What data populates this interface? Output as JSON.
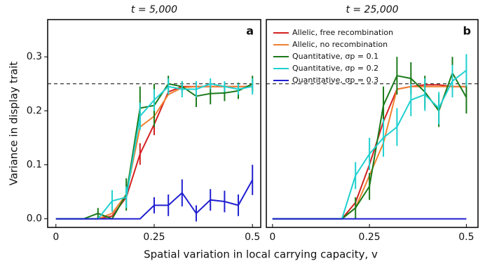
{
  "chart_data": [
    {
      "type": "line",
      "title": "t = 5,000",
      "panel_label": "a",
      "xlabel": "Spatial variation in local carrying capacity, v",
      "ylabel": "Variance in display trait",
      "x": [
        0,
        0.036,
        0.071,
        0.107,
        0.143,
        0.179,
        0.214,
        0.25,
        0.286,
        0.321,
        0.357,
        0.393,
        0.429,
        0.464,
        0.5
      ],
      "xlim": [
        -0.021,
        0.521
      ],
      "xticks": [
        0,
        {
          "value": 0.25,
          "label": "0.25"
        },
        0.5
      ],
      "ylim": [
        -0.016,
        0.369
      ],
      "yticks": [
        {
          "value": 0,
          "label": "0.0"
        },
        0.1,
        0.2,
        0.3
      ],
      "reference_line": 0.25,
      "series": [
        {
          "color": "#d42020",
          "values": [
            0,
            0,
            0,
            0,
            0.005,
            0.04,
            0.12,
            0.175,
            0.235,
            0.245,
            0.245,
            0.245,
            0.245,
            0.245,
            0.245
          ],
          "errors": [
            null,
            null,
            null,
            null,
            null,
            null,
            0.02,
            0.02,
            null,
            null,
            null,
            null,
            null,
            null,
            null
          ]
        },
        {
          "color": "#f08030",
          "values": [
            0,
            0,
            0,
            0,
            0.01,
            0.045,
            0.17,
            0.19,
            0.23,
            0.243,
            0.245,
            0.245,
            0.245,
            0.245,
            0.245
          ],
          "errors": [
            null,
            null,
            null,
            null,
            null,
            null,
            null,
            null,
            null,
            null,
            null,
            null,
            null,
            null,
            null
          ]
        },
        {
          "color": "#1a7a1a",
          "values": [
            0,
            0,
            0,
            0.01,
            0,
            0.045,
            0.205,
            0.21,
            0.25,
            0.245,
            0.227,
            0.232,
            0.233,
            0.237,
            0.25
          ],
          "errors": [
            null,
            null,
            null,
            0.01,
            null,
            0.03,
            0.04,
            0.04,
            0.015,
            0.01,
            0.02,
            0.02,
            0.015,
            0.015,
            0.015
          ]
        },
        {
          "color": "#20d0d0",
          "values": [
            0,
            0,
            0,
            0,
            0.033,
            0.04,
            0.19,
            0.22,
            0.245,
            0.24,
            0.24,
            0.25,
            0.245,
            0.24,
            0.245
          ],
          "errors": [
            null,
            null,
            null,
            null,
            0.02,
            0.02,
            0.025,
            0.02,
            0.015,
            0.015,
            0.015,
            0.01,
            0.01,
            0.01,
            0.015
          ]
        },
        {
          "color": "#2020d0",
          "values": [
            0,
            0,
            0,
            0,
            0,
            0,
            0,
            0.025,
            0.025,
            0.048,
            0.01,
            0.035,
            0.032,
            0.025,
            0.072
          ],
          "errors": [
            null,
            null,
            null,
            null,
            null,
            null,
            null,
            0.015,
            0.02,
            0.025,
            0.015,
            0.02,
            0.02,
            0.02,
            0.028
          ]
        }
      ]
    },
    {
      "type": "line",
      "title": "t = 25,000",
      "panel_label": "b",
      "x": [
        0,
        0.036,
        0.071,
        0.107,
        0.143,
        0.179,
        0.214,
        0.25,
        0.286,
        0.321,
        0.357,
        0.393,
        0.429,
        0.464,
        0.5
      ],
      "xlim": [
        -0.016,
        0.53
      ],
      "xticks": [
        0,
        {
          "value": 0.25,
          "label": "0.25"
        },
        0.5
      ],
      "ylim": [
        -0.016,
        0.369
      ],
      "reference_line": 0.25,
      "legend": "upper left",
      "series": [
        {
          "name": "Allelic, free recombination",
          "color": "#d42020",
          "values": [
            0,
            0,
            0,
            0,
            0,
            0,
            0.03,
            0.1,
            0.18,
            0.24,
            0.245,
            0.248,
            0.248,
            0.245,
            0.245
          ],
          "errors": [
            null,
            null,
            null,
            null,
            null,
            null,
            null,
            null,
            null,
            null,
            null,
            null,
            null,
            null,
            null
          ]
        },
        {
          "name": "Allelic, no recombination",
          "color": "#f08030",
          "values": [
            0,
            0,
            0,
            0,
            0,
            0,
            0.02,
            0.08,
            0.14,
            0.24,
            0.245,
            0.245,
            0.245,
            0.245,
            0.245
          ],
          "errors": [
            null,
            null,
            null,
            null,
            null,
            null,
            null,
            null,
            null,
            null,
            null,
            null,
            null,
            null,
            null
          ]
        },
        {
          "name": "Quantitative, σp = 0.1",
          "color": "#1a7a1a",
          "values": [
            0,
            0,
            0,
            0,
            0,
            0,
            0.02,
            0.06,
            0.21,
            0.265,
            0.26,
            0.235,
            0.2,
            0.27,
            0.225
          ],
          "errors": [
            null,
            null,
            null,
            null,
            null,
            null,
            0.02,
            0.025,
            0.035,
            0.035,
            0.03,
            0.03,
            0.03,
            0.03,
            0.03
          ]
        },
        {
          "name": "Quantitative, σp = 0.2",
          "color": "#20d0d0",
          "values": [
            0,
            0,
            0,
            0,
            0,
            0,
            0.08,
            0.12,
            0.15,
            0.17,
            0.22,
            0.23,
            0.205,
            0.255,
            0.275
          ],
          "errors": [
            null,
            null,
            null,
            null,
            null,
            null,
            0.025,
            0.03,
            0.035,
            0.035,
            0.03,
            0.03,
            0.03,
            0.03,
            0.03
          ]
        },
        {
          "name": "Quantitative, σp = 0.3",
          "color": "#2020d0",
          "values": [
            0,
            0,
            0,
            0,
            0,
            0,
            0,
            0,
            0,
            0,
            0,
            0,
            0,
            0,
            0
          ],
          "errors": [
            null,
            null,
            null,
            null,
            null,
            null,
            null,
            null,
            null,
            null,
            null,
            null,
            null,
            null,
            null
          ]
        }
      ]
    }
  ]
}
